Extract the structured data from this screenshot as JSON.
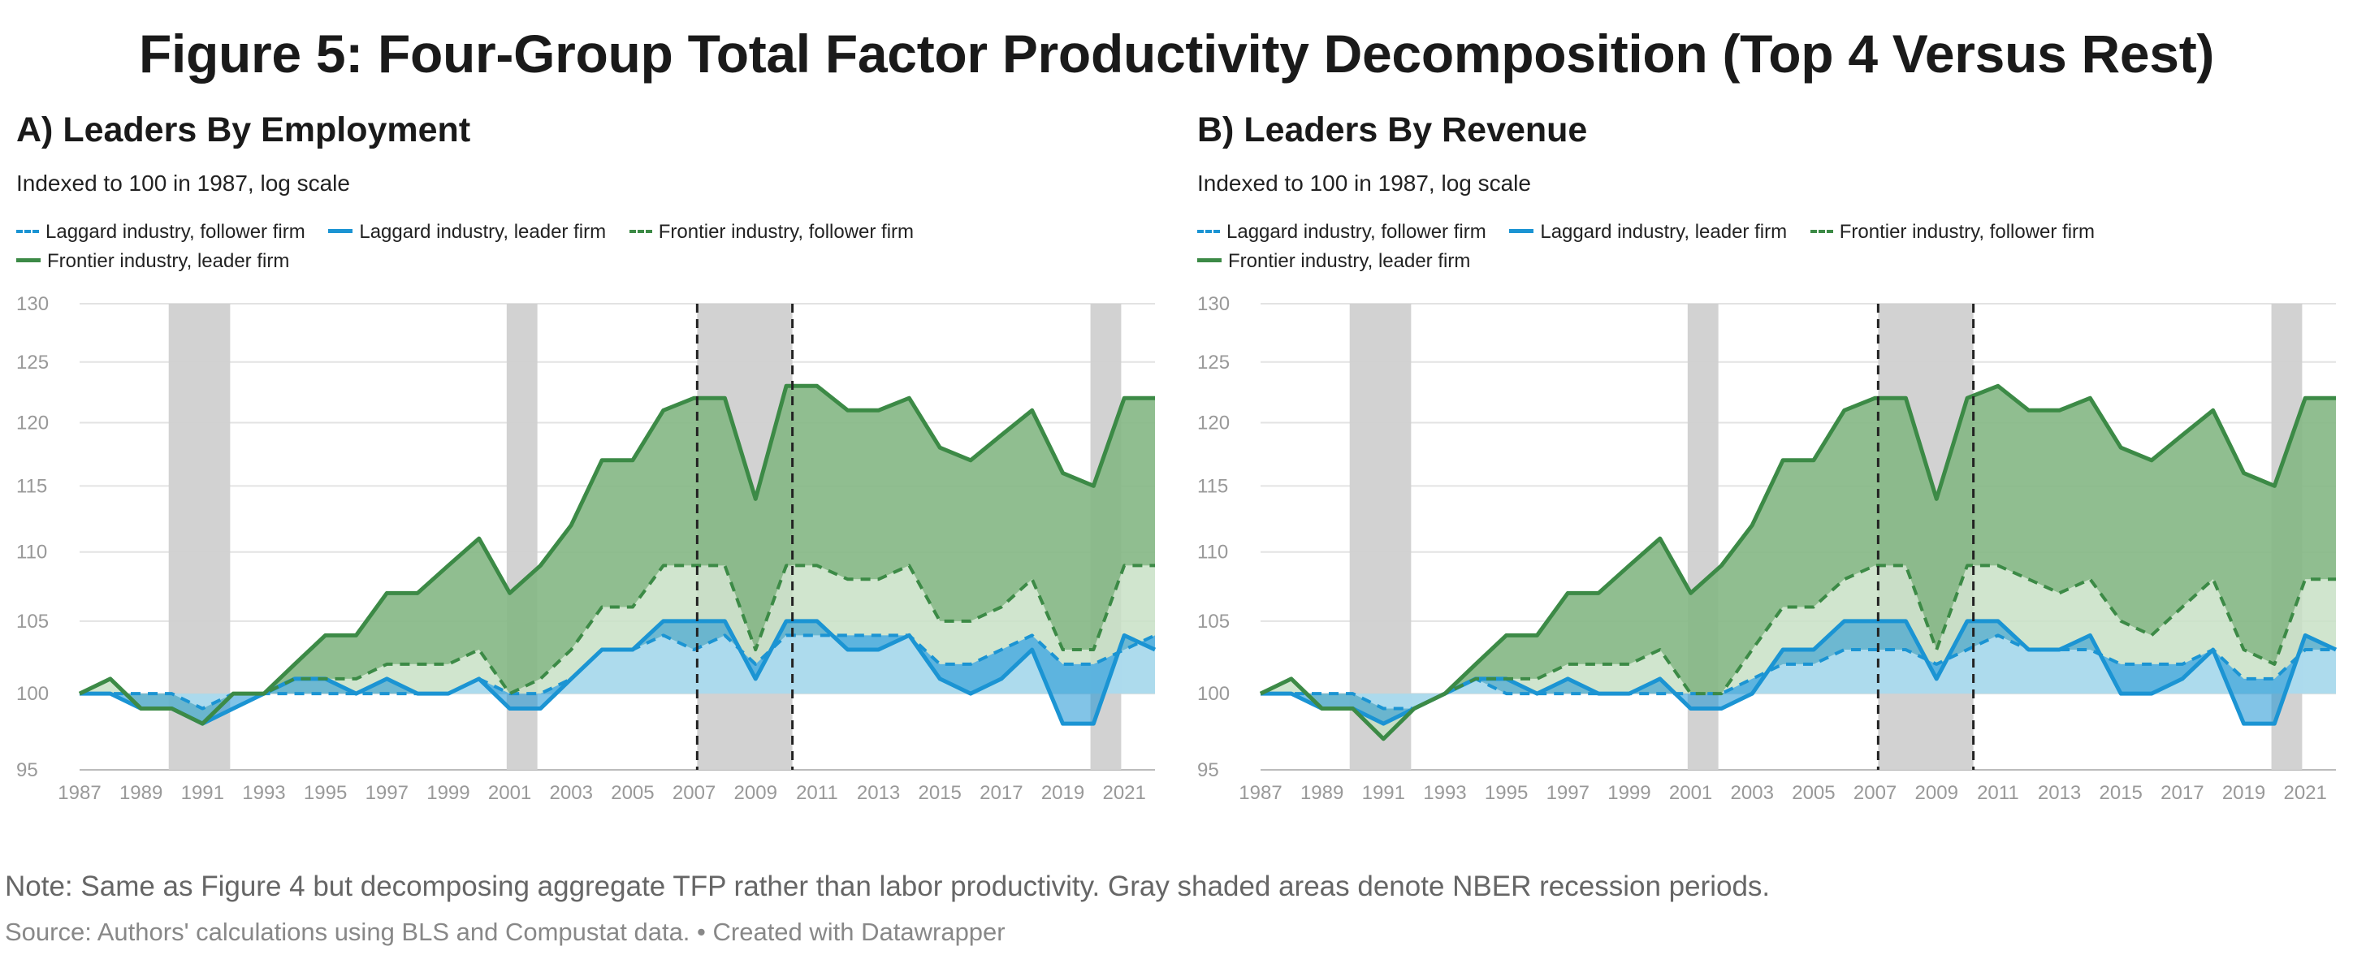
{
  "figure_title": "Figure 5: Four-Group Total Factor Productivity Decomposition (Top 4 Versus Rest)",
  "note": "Note: Same as Figure 4 but decomposing aggregate TFP rather than labor productivity. Gray shaded areas denote NBER recession periods.",
  "source": "Source: Authors' calculations using BLS and Compustat data. • Created with Datawrapper",
  "colors": {
    "laggard": "#1b94d3",
    "laggard_fill": "#a9d9f1",
    "frontier": "#3c8a46",
    "frontier_fill": "#c8e0c5",
    "frontier_leader_fill": "#84b784",
    "recession": "#d0d0d0",
    "grid": "#e3e3e3"
  },
  "legend": {
    "laggard_follower": "Laggard industry, follower firm",
    "laggard_leader": "Laggard industry, leader firm",
    "frontier_follower": "Frontier industry, follower firm",
    "frontier_leader": "Frontier industry, leader firm"
  },
  "panels": [
    {
      "title": "A) Leaders By Employment",
      "subtitle": "Indexed to 100 in 1987, log scale"
    },
    {
      "title": "B) Leaders By Revenue",
      "subtitle": "Indexed to 100 in 1987, log scale"
    }
  ],
  "chart_data": [
    {
      "type": "area",
      "title": "A) Leaders By Employment",
      "subtitle": "Indexed to 100 in 1987, log scale",
      "x_range": [
        1987,
        2022
      ],
      "ylim": [
        95,
        130
      ],
      "y_ticks": [
        95,
        100,
        105,
        110,
        115,
        120,
        125,
        130
      ],
      "x_ticks": [
        1987,
        1989,
        1991,
        1993,
        1995,
        1997,
        1999,
        2001,
        2003,
        2005,
        2007,
        2009,
        2011,
        2013,
        2015,
        2017,
        2019,
        2021
      ],
      "log_scale": true,
      "grid": true,
      "recessions": [
        [
          1989.9,
          1991.9
        ],
        [
          2000.9,
          2001.9
        ],
        [
          2007.1,
          2010.2
        ],
        [
          2019.9,
          2020.9
        ]
      ],
      "dashed_markers": [
        2007.1,
        2010.2
      ],
      "years": [
        1987,
        1988,
        1989,
        1990,
        1991,
        1992,
        1993,
        1994,
        1995,
        1996,
        1997,
        1998,
        1999,
        2000,
        2001,
        2002,
        2003,
        2004,
        2005,
        2006,
        2007,
        2008,
        2009,
        2010,
        2011,
        2012,
        2013,
        2014,
        2015,
        2016,
        2017,
        2018,
        2019,
        2020,
        2021,
        2022
      ],
      "series": [
        {
          "name": "Laggard industry, follower firm",
          "style": "dashed",
          "color": "laggard",
          "values": [
            100,
            100,
            100,
            100,
            99,
            100,
            100,
            100,
            100,
            100,
            100,
            100,
            100,
            101,
            100,
            100,
            101,
            103,
            103,
            104,
            103,
            104,
            102,
            104,
            104,
            104,
            104,
            104,
            102,
            102,
            103,
            104,
            102,
            102,
            103,
            104
          ]
        },
        {
          "name": "Laggard industry, leader firm",
          "style": "solid",
          "color": "laggard",
          "values": [
            100,
            100,
            99,
            99,
            98,
            99,
            100,
            101,
            101,
            100,
            101,
            100,
            100,
            101,
            99,
            99,
            101,
            103,
            103,
            105,
            105,
            105,
            101,
            105,
            105,
            103,
            103,
            104,
            101,
            100,
            101,
            103,
            98,
            98,
            104,
            103
          ]
        },
        {
          "name": "Frontier industry, follower firm",
          "style": "dashed",
          "color": "frontier",
          "values": [
            100,
            101,
            99,
            99,
            98,
            100,
            100,
            101,
            101,
            101,
            102,
            102,
            102,
            103,
            100,
            101,
            103,
            106,
            106,
            109,
            109,
            109,
            103,
            109,
            109,
            108,
            108,
            109,
            105,
            105,
            106,
            108,
            103,
            103,
            109,
            109
          ]
        },
        {
          "name": "Frontier industry, leader firm",
          "style": "solid",
          "color": "frontier",
          "values": [
            100,
            101,
            99,
            99,
            98,
            100,
            100,
            102,
            104,
            104,
            107,
            107,
            109,
            111,
            107,
            109,
            112,
            117,
            117,
            121,
            122,
            122,
            114,
            123,
            123,
            121,
            121,
            122,
            118,
            117,
            119,
            121,
            116,
            115,
            122,
            122
          ]
        }
      ]
    },
    {
      "type": "area",
      "title": "B) Leaders By Revenue",
      "subtitle": "Indexed to 100 in 1987, log scale",
      "x_range": [
        1987,
        2022
      ],
      "ylim": [
        95,
        130
      ],
      "y_ticks": [
        95,
        100,
        105,
        110,
        115,
        120,
        125,
        130
      ],
      "x_ticks": [
        1987,
        1989,
        1991,
        1993,
        1995,
        1997,
        1999,
        2001,
        2003,
        2005,
        2007,
        2009,
        2011,
        2013,
        2015,
        2017,
        2019,
        2021
      ],
      "log_scale": true,
      "grid": true,
      "recessions": [
        [
          1989.9,
          1991.9
        ],
        [
          2000.9,
          2001.9
        ],
        [
          2007.1,
          2010.2
        ],
        [
          2019.9,
          2020.9
        ]
      ],
      "dashed_markers": [
        2007.1,
        2010.2
      ],
      "years": [
        1987,
        1988,
        1989,
        1990,
        1991,
        1992,
        1993,
        1994,
        1995,
        1996,
        1997,
        1998,
        1999,
        2000,
        2001,
        2002,
        2003,
        2004,
        2005,
        2006,
        2007,
        2008,
        2009,
        2010,
        2011,
        2012,
        2013,
        2014,
        2015,
        2016,
        2017,
        2018,
        2019,
        2020,
        2021,
        2022
      ],
      "series": [
        {
          "name": "Laggard industry, follower firm",
          "style": "dashed",
          "color": "laggard",
          "values": [
            100,
            100,
            100,
            100,
            99,
            99,
            100,
            101,
            100,
            100,
            100,
            100,
            100,
            100,
            100,
            100,
            101,
            102,
            102,
            103,
            103,
            103,
            102,
            103,
            104,
            103,
            103,
            103,
            102,
            102,
            102,
            103,
            101,
            101,
            103,
            103
          ]
        },
        {
          "name": "Laggard industry, leader firm",
          "style": "solid",
          "color": "laggard",
          "values": [
            100,
            100,
            99,
            99,
            98,
            99,
            100,
            101,
            101,
            100,
            101,
            100,
            100,
            101,
            99,
            99,
            100,
            103,
            103,
            105,
            105,
            105,
            101,
            105,
            105,
            103,
            103,
            104,
            100,
            100,
            101,
            103,
            98,
            98,
            104,
            103
          ]
        },
        {
          "name": "Frontier industry, follower firm",
          "style": "dashed",
          "color": "frontier",
          "values": [
            100,
            101,
            99,
            99,
            97,
            99,
            100,
            101,
            101,
            101,
            102,
            102,
            102,
            103,
            100,
            100,
            103,
            106,
            106,
            108,
            109,
            109,
            103,
            109,
            109,
            108,
            107,
            108,
            105,
            104,
            106,
            108,
            103,
            102,
            108,
            108
          ]
        },
        {
          "name": "Frontier industry, leader firm",
          "style": "solid",
          "color": "frontier",
          "values": [
            100,
            101,
            99,
            99,
            97,
            99,
            100,
            102,
            104,
            104,
            107,
            107,
            109,
            111,
            107,
            109,
            112,
            117,
            117,
            121,
            122,
            122,
            114,
            122,
            123,
            121,
            121,
            122,
            118,
            117,
            119,
            121,
            116,
            115,
            122,
            122
          ]
        }
      ]
    }
  ]
}
